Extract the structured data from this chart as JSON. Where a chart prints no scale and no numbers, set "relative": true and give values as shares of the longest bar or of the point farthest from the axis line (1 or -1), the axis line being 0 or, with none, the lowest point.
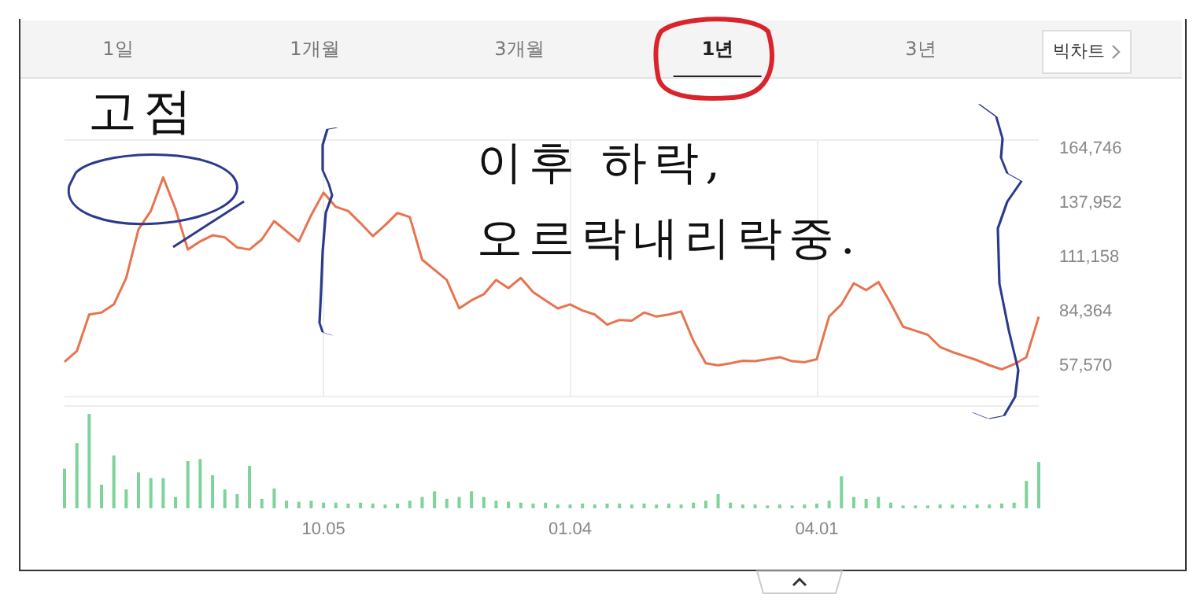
{
  "chart_data": [
    {
      "type": "line",
      "annotations": [
        "1일",
        "1개월",
        "3개월",
        "1년",
        "3년",
        "빅차트",
        "고점",
        "이후 하락,",
        "오르락내리락중."
      ],
      "categories": [
        null,
        null,
        null,
        null,
        null,
        null,
        null,
        null,
        null,
        null,
        null,
        null,
        null,
        null,
        null,
        null,
        null,
        null,
        null,
        null,
        null,
        "10.05",
        null,
        null,
        null,
        null,
        null,
        null,
        null,
        null,
        null,
        null,
        null,
        null,
        null,
        null,
        null,
        null,
        null,
        null,
        null,
        "01.04",
        null,
        null,
        null,
        null,
        null,
        null,
        null,
        null,
        null,
        null,
        null,
        null,
        null,
        null,
        null,
        null,
        null,
        null,
        null,
        "04.01",
        null,
        null,
        null,
        null,
        null,
        null,
        null,
        null,
        null,
        null,
        null,
        null,
        null,
        null,
        null,
        null,
        null,
        null
      ],
      "series": [
        {
          "color": "#e8734f",
          "values": [
            59700,
            65000,
            83000,
            84000,
            88000,
            101000,
            125000,
            134000,
            150500,
            135000,
            115000,
            119000,
            122000,
            121000,
            116000,
            115000,
            120000,
            129000,
            124000,
            119000,
            131900,
            143000,
            136000,
            134000,
            128000,
            121600,
            127000,
            133000,
            131000,
            110000,
            105000,
            100000,
            86000,
            90000,
            93000,
            100000,
            96000,
            101000,
            94000,
            90000,
            86000,
            88000,
            85000,
            83000,
            78000,
            80300,
            80000,
            84000,
            82000,
            83000,
            84500,
            70000,
            59000,
            58000,
            59000,
            60200,
            60000,
            61000,
            62000,
            60000,
            59500,
            61000,
            82000,
            88000,
            98400,
            95000,
            99000,
            88500,
            77000,
            75000,
            73000,
            67000,
            64500,
            62500,
            60500,
            58000,
            56000,
            58500,
            62000,
            81900
          ]
        }
      ],
      "ylim": [
        42600,
        168900
      ],
      "yticks": [
        {
          "value": 57570,
          "label": "57,570"
        },
        {
          "value": 84364,
          "label": "84,364"
        },
        {
          "value": 111158,
          "label": "111,158"
        },
        {
          "value": 137952,
          "label": "137,952"
        },
        {
          "value": 164746,
          "label": "164,746"
        }
      ],
      "grid": "x",
      "tick_labels": "y",
      "marker": "none"
    },
    {
      "type": "bar",
      "relative": true,
      "categories": [
        null,
        null,
        null,
        null,
        null,
        null,
        null,
        null,
        null,
        null,
        null,
        null,
        null,
        null,
        null,
        null,
        null,
        null,
        null,
        null,
        null,
        "10.05",
        null,
        null,
        null,
        null,
        null,
        null,
        null,
        null,
        null,
        null,
        null,
        null,
        null,
        null,
        null,
        null,
        null,
        null,
        null,
        "01.04",
        null,
        null,
        null,
        null,
        null,
        null,
        null,
        null,
        null,
        null,
        null,
        null,
        null,
        null,
        null,
        null,
        null,
        null,
        null,
        "04.01",
        null,
        null,
        null,
        null,
        null,
        null,
        null,
        null,
        null,
        null,
        null,
        null,
        null,
        null,
        null,
        null,
        null,
        null
      ],
      "series": [
        {
          "color": "#7dd39a",
          "values": [
            0.42,
            0.69,
            1.0,
            0.25,
            0.56,
            0.2,
            0.38,
            0.32,
            0.32,
            0.12,
            0.5,
            0.52,
            0.35,
            0.2,
            0.15,
            0.45,
            0.1,
            0.21,
            0.08,
            0.07,
            0.08,
            0.06,
            0.06,
            0.05,
            0.06,
            0.05,
            0.04,
            0.05,
            0.08,
            0.12,
            0.18,
            0.1,
            0.12,
            0.18,
            0.12,
            0.08,
            0.07,
            0.06,
            0.05,
            0.06,
            0.04,
            0.04,
            0.05,
            0.04,
            0.05,
            0.05,
            0.04,
            0.05,
            0.04,
            0.05,
            0.04,
            0.06,
            0.08,
            0.15,
            0.06,
            0.04,
            0.04,
            0.03,
            0.04,
            0.03,
            0.04,
            0.05,
            0.08,
            0.34,
            0.12,
            0.1,
            0.12,
            0.06,
            0.03,
            0.03,
            0.03,
            0.04,
            0.04,
            0.03,
            0.04,
            0.04,
            0.05,
            0.06,
            0.29,
            0.49
          ]
        }
      ],
      "tick_labels": "x"
    }
  ]
}
